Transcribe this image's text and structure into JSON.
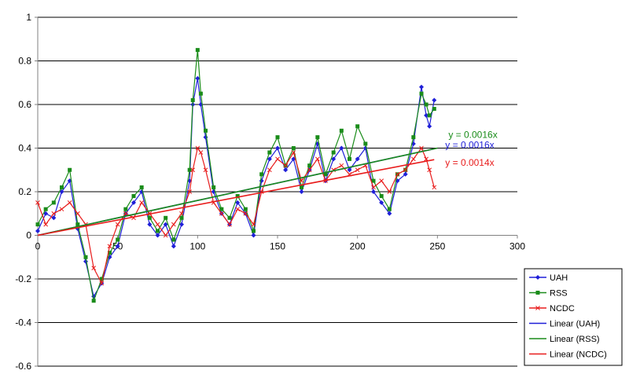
{
  "chart_data": {
    "type": "line",
    "title": "",
    "xlabel": "",
    "ylabel": "",
    "xlim": [
      0,
      300
    ],
    "ylim": [
      -0.6,
      1
    ],
    "x_ticks": [
      0,
      50,
      100,
      150,
      200,
      250,
      300
    ],
    "y_ticks": [
      -0.6,
      -0.4,
      -0.2,
      0,
      0.2,
      0.4,
      0.6,
      0.8,
      1
    ],
    "x_tick_labels": [
      "0",
      "50",
      "100",
      "150",
      "200",
      "250",
      "300"
    ],
    "y_tick_labels": [
      "-0.6",
      "-0.4",
      "-0.2",
      "0",
      "0.2",
      "0.4",
      "0.6",
      "0.8",
      "1"
    ],
    "grid": "horizontal",
    "legend_position": "right",
    "series": [
      {
        "name": "UAH",
        "color": "#1f1fd8",
        "marker": "diamond",
        "x": [
          0,
          5,
          10,
          15,
          20,
          25,
          30,
          35,
          40,
          45,
          50,
          55,
          60,
          65,
          70,
          75,
          80,
          85,
          90,
          95,
          97,
          100,
          102,
          105,
          110,
          115,
          120,
          125,
          130,
          135,
          140,
          145,
          150,
          155,
          160,
          165,
          170,
          175,
          180,
          185,
          190,
          195,
          200,
          205,
          210,
          215,
          220,
          225,
          230,
          235,
          240,
          243,
          245,
          248
        ],
        "y": [
          0.02,
          0.1,
          0.08,
          0.2,
          0.25,
          0.03,
          -0.12,
          -0.28,
          -0.22,
          -0.1,
          -0.05,
          0.1,
          0.15,
          0.2,
          0.05,
          0,
          0.05,
          -0.05,
          0.05,
          0.25,
          0.6,
          0.72,
          0.6,
          0.45,
          0.2,
          0.1,
          0.05,
          0.15,
          0.1,
          0,
          0.25,
          0.35,
          0.4,
          0.3,
          0.35,
          0.2,
          0.3,
          0.42,
          0.25,
          0.35,
          0.4,
          0.3,
          0.35,
          0.4,
          0.2,
          0.15,
          0.1,
          0.25,
          0.28,
          0.42,
          0.68,
          0.55,
          0.5,
          0.62
        ]
      },
      {
        "name": "RSS",
        "color": "#1a8c1a",
        "marker": "square",
        "x": [
          0,
          5,
          10,
          15,
          20,
          25,
          30,
          35,
          40,
          45,
          50,
          55,
          60,
          65,
          70,
          75,
          80,
          85,
          90,
          95,
          97,
          100,
          102,
          105,
          110,
          115,
          120,
          125,
          130,
          135,
          140,
          145,
          150,
          155,
          160,
          165,
          170,
          175,
          180,
          185,
          190,
          195,
          200,
          205,
          210,
          215,
          220,
          225,
          230,
          235,
          240,
          243,
          245,
          248
        ],
        "y": [
          0.05,
          0.12,
          0.15,
          0.22,
          0.3,
          0.05,
          -0.1,
          -0.3,
          -0.2,
          -0.08,
          -0.02,
          0.12,
          0.18,
          0.22,
          0.08,
          0.02,
          0.08,
          -0.02,
          0.08,
          0.3,
          0.62,
          0.85,
          0.65,
          0.48,
          0.22,
          0.12,
          0.08,
          0.18,
          0.12,
          0.02,
          0.28,
          0.38,
          0.45,
          0.32,
          0.4,
          0.22,
          0.32,
          0.45,
          0.28,
          0.38,
          0.48,
          0.35,
          0.5,
          0.42,
          0.25,
          0.18,
          0.12,
          0.28,
          0.3,
          0.45,
          0.65,
          0.6,
          0.55,
          0.58
        ]
      },
      {
        "name": "NCDC",
        "color": "#e81c1c",
        "marker": "x",
        "x": [
          0,
          5,
          10,
          15,
          20,
          25,
          30,
          35,
          40,
          45,
          50,
          55,
          60,
          65,
          70,
          75,
          80,
          85,
          90,
          95,
          97,
          100,
          102,
          105,
          110,
          115,
          120,
          125,
          130,
          135,
          140,
          145,
          150,
          155,
          160,
          165,
          170,
          175,
          180,
          185,
          190,
          195,
          200,
          205,
          210,
          215,
          220,
          225,
          230,
          235,
          240,
          243,
          245,
          248
        ],
        "y": [
          0.15,
          0.05,
          0.1,
          0.12,
          0.15,
          0.1,
          0.05,
          -0.15,
          -0.22,
          -0.05,
          0.05,
          0.1,
          0.08,
          0.15,
          0.1,
          0.05,
          0,
          0.05,
          0.1,
          0.2,
          0.3,
          0.4,
          0.38,
          0.3,
          0.15,
          0.1,
          0.05,
          0.12,
          0.1,
          0.05,
          0.2,
          0.3,
          0.35,
          0.32,
          0.38,
          0.25,
          0.3,
          0.35,
          0.25,
          0.3,
          0.32,
          0.28,
          0.3,
          0.32,
          0.22,
          0.25,
          0.2,
          0.28,
          0.3,
          0.35,
          0.4,
          0.35,
          0.3,
          0.22
        ]
      }
    ],
    "trendlines": [
      {
        "name": "Linear (UAH)",
        "color": "#1f1fd8",
        "slope": 0.0016,
        "x_end": 248,
        "equation": "y = 0.0016x"
      },
      {
        "name": "Linear (RSS)",
        "color": "#1a8c1a",
        "slope": 0.0016,
        "x_end": 250,
        "equation": "y = 0.0016x"
      },
      {
        "name": "Linear (NCDC)",
        "color": "#e81c1c",
        "slope": 0.0014,
        "x_end": 248,
        "equation": "y = 0.0014x"
      }
    ],
    "legend": [
      {
        "label": "UAH",
        "color": "#1f1fd8",
        "marker": "diamond"
      },
      {
        "label": "RSS",
        "color": "#1a8c1a",
        "marker": "square"
      },
      {
        "label": "NCDC",
        "color": "#e81c1c",
        "marker": "x"
      },
      {
        "label": "Linear (UAH)",
        "color": "#1f1fd8",
        "marker": "none"
      },
      {
        "label": "Linear (RSS)",
        "color": "#1a8c1a",
        "marker": "none"
      },
      {
        "label": "Linear (NCDC)",
        "color": "#e81c1c",
        "marker": "none"
      }
    ]
  }
}
